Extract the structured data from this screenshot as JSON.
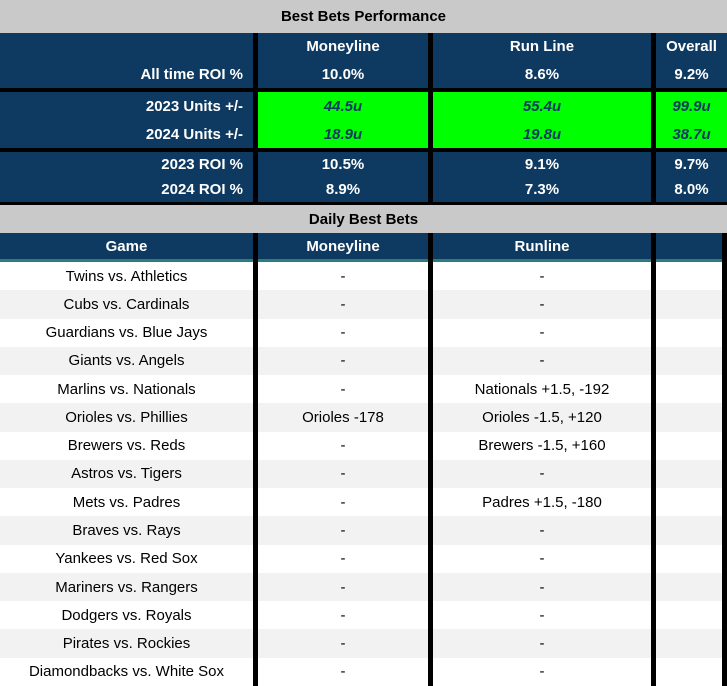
{
  "performance": {
    "title": "Best Bets Performance",
    "columns": [
      "Moneyline",
      "Run Line",
      "Overall"
    ],
    "all_time": {
      "label": "All time ROI %",
      "values": [
        "10.0%",
        "8.6%",
        "9.2%"
      ]
    },
    "units": [
      {
        "label": "2023 Units +/-",
        "values": [
          "44.5u",
          "55.4u",
          "99.9u"
        ]
      },
      {
        "label": "2024 Units +/-",
        "values": [
          "18.9u",
          "19.8u",
          "38.7u"
        ]
      }
    ],
    "roi": [
      {
        "label": "2023 ROI %",
        "values": [
          "10.5%",
          "9.1%",
          "9.7%"
        ]
      },
      {
        "label": "2024 ROI %",
        "values": [
          "8.9%",
          "7.3%",
          "8.0%"
        ]
      }
    ]
  },
  "daily": {
    "title": "Daily Best Bets",
    "columns": [
      "Game",
      "Moneyline",
      "Runline"
    ],
    "rows": [
      {
        "game": "Twins vs. Athletics",
        "moneyline": "-",
        "runline": "-"
      },
      {
        "game": "Cubs vs. Cardinals",
        "moneyline": "-",
        "runline": "-"
      },
      {
        "game": "Guardians vs. Blue Jays",
        "moneyline": "-",
        "runline": "-"
      },
      {
        "game": "Giants vs. Angels",
        "moneyline": "-",
        "runline": "-"
      },
      {
        "game": "Marlins vs. Nationals",
        "moneyline": "-",
        "runline": "Nationals +1.5, -192"
      },
      {
        "game": "Orioles vs. Phillies",
        "moneyline": "Orioles -178",
        "runline": "Orioles -1.5, +120"
      },
      {
        "game": "Brewers vs. Reds",
        "moneyline": "-",
        "runline": "Brewers -1.5, +160"
      },
      {
        "game": "Astros vs. Tigers",
        "moneyline": "-",
        "runline": "-"
      },
      {
        "game": "Mets vs. Padres",
        "moneyline": "-",
        "runline": "Padres +1.5, -180"
      },
      {
        "game": "Braves vs. Rays",
        "moneyline": "-",
        "runline": "-"
      },
      {
        "game": "Yankees vs. Red Sox",
        "moneyline": "-",
        "runline": "-"
      },
      {
        "game": "Mariners vs. Rangers",
        "moneyline": "-",
        "runline": "-"
      },
      {
        "game": "Dodgers vs. Royals",
        "moneyline": "-",
        "runline": "-"
      },
      {
        "game": "Pirates vs. Rockies",
        "moneyline": "-",
        "runline": "-"
      },
      {
        "game": "Diamondbacks vs. White Sox",
        "moneyline": "-",
        "runline": "-"
      }
    ]
  },
  "colors": {
    "navy": "#0E3A62",
    "bright_green": "#00FF00",
    "gray_bar": "#C9C9C9",
    "row_stripe": "#F2F2F2",
    "teal_rule": "#2E7D7A",
    "divider_black": "#000000"
  }
}
